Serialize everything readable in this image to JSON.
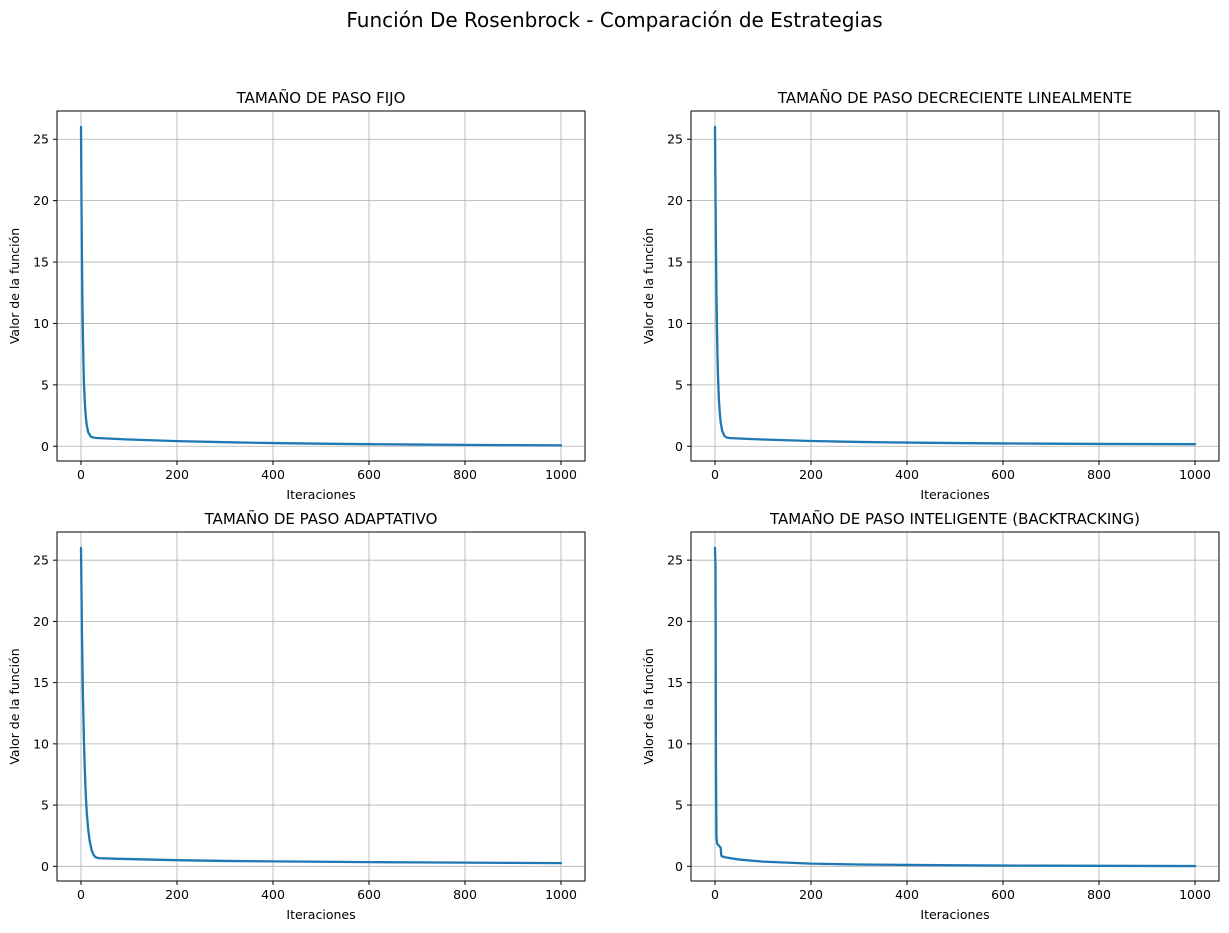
{
  "figure": {
    "title": "Función De Rosenbrock - Comparación de Estrategias"
  },
  "colors": {
    "line": "#1f77b4",
    "grid": "#b0b0b0",
    "axis": "#000000"
  },
  "chart_data": [
    {
      "type": "line",
      "title": "TAMAÑO DE PASO FIJO",
      "xlabel": "Iteraciones",
      "ylabel": "Valor de la función",
      "xlim": [
        -50,
        1050
      ],
      "ylim": [
        -1.2,
        27.3
      ],
      "xticks": [
        0,
        200,
        400,
        600,
        800,
        1000
      ],
      "yticks": [
        0,
        5,
        10,
        15,
        20,
        25
      ],
      "grid": true,
      "x": [
        0,
        1,
        2,
        3,
        4,
        5,
        6,
        8,
        10,
        12,
        15,
        20,
        25,
        30,
        40,
        60,
        100,
        200,
        300,
        400,
        500,
        600,
        700,
        800,
        900,
        1000
      ],
      "values": [
        26.0,
        20.0,
        15.2,
        11.7,
        9.0,
        7.0,
        5.3,
        3.5,
        2.4,
        1.7,
        1.15,
        0.8,
        0.72,
        0.68,
        0.66,
        0.62,
        0.55,
        0.42,
        0.33,
        0.26,
        0.21,
        0.17,
        0.14,
        0.11,
        0.09,
        0.07
      ]
    },
    {
      "type": "line",
      "title": "TAMAÑO DE PASO DECRECIENTE LINEALMENTE",
      "xlabel": "Iteraciones",
      "ylabel": "Valor de la función",
      "xlim": [
        -50,
        1050
      ],
      "ylim": [
        -1.2,
        27.3
      ],
      "xticks": [
        0,
        200,
        400,
        600,
        800,
        1000
      ],
      "yticks": [
        0,
        5,
        10,
        15,
        20,
        25
      ],
      "grid": true,
      "x": [
        0,
        1,
        2,
        3,
        4,
        5,
        6,
        8,
        10,
        12,
        15,
        20,
        25,
        30,
        40,
        60,
        100,
        200,
        300,
        400,
        500,
        600,
        700,
        800,
        900,
        1000
      ],
      "values": [
        26.0,
        20.5,
        16.0,
        12.5,
        9.8,
        7.7,
        6.0,
        3.9,
        2.7,
        1.9,
        1.25,
        0.82,
        0.7,
        0.67,
        0.65,
        0.61,
        0.55,
        0.43,
        0.35,
        0.3,
        0.26,
        0.23,
        0.21,
        0.19,
        0.18,
        0.17
      ]
    },
    {
      "type": "line",
      "title": "TAMAÑO DE PASO ADAPTATIVO",
      "xlabel": "Iteraciones",
      "ylabel": "Valor de la función",
      "xlim": [
        -50,
        1050
      ],
      "ylim": [
        -1.2,
        27.3
      ],
      "xticks": [
        0,
        200,
        400,
        600,
        800,
        1000
      ],
      "yticks": [
        0,
        5,
        10,
        15,
        20,
        25
      ],
      "grid": true,
      "x": [
        0,
        2,
        4,
        6,
        8,
        10,
        12,
        15,
        18,
        22,
        26,
        30,
        35,
        40,
        50,
        70,
        100,
        200,
        300,
        400,
        500,
        600,
        700,
        800,
        900,
        1000
      ],
      "values": [
        26.0,
        19.0,
        14.0,
        10.4,
        7.8,
        5.8,
        4.4,
        3.0,
        2.1,
        1.35,
        0.95,
        0.75,
        0.68,
        0.66,
        0.65,
        0.62,
        0.59,
        0.5,
        0.44,
        0.4,
        0.37,
        0.34,
        0.32,
        0.3,
        0.28,
        0.26
      ]
    },
    {
      "type": "line",
      "title": "TAMAÑO DE PASO INTELIGENTE (BACKTRACKING)",
      "xlabel": "Iteraciones",
      "ylabel": "Valor de la función",
      "xlim": [
        -50,
        1050
      ],
      "ylim": [
        -1.2,
        27.3
      ],
      "xticks": [
        0,
        200,
        400,
        600,
        800,
        1000
      ],
      "yticks": [
        0,
        5,
        10,
        15,
        20,
        25
      ],
      "grid": true,
      "x": [
        0,
        1,
        2,
        3,
        4,
        5,
        8,
        10,
        12,
        13,
        14,
        16,
        20,
        30,
        50,
        100,
        200,
        300,
        400,
        500,
        600,
        700,
        800,
        900,
        1000
      ],
      "values": [
        26.0,
        24.5,
        8.0,
        2.5,
        2.0,
        1.8,
        1.7,
        1.6,
        1.5,
        0.9,
        0.82,
        0.8,
        0.75,
        0.68,
        0.55,
        0.38,
        0.22,
        0.15,
        0.11,
        0.08,
        0.06,
        0.05,
        0.04,
        0.03,
        0.02
      ]
    }
  ]
}
